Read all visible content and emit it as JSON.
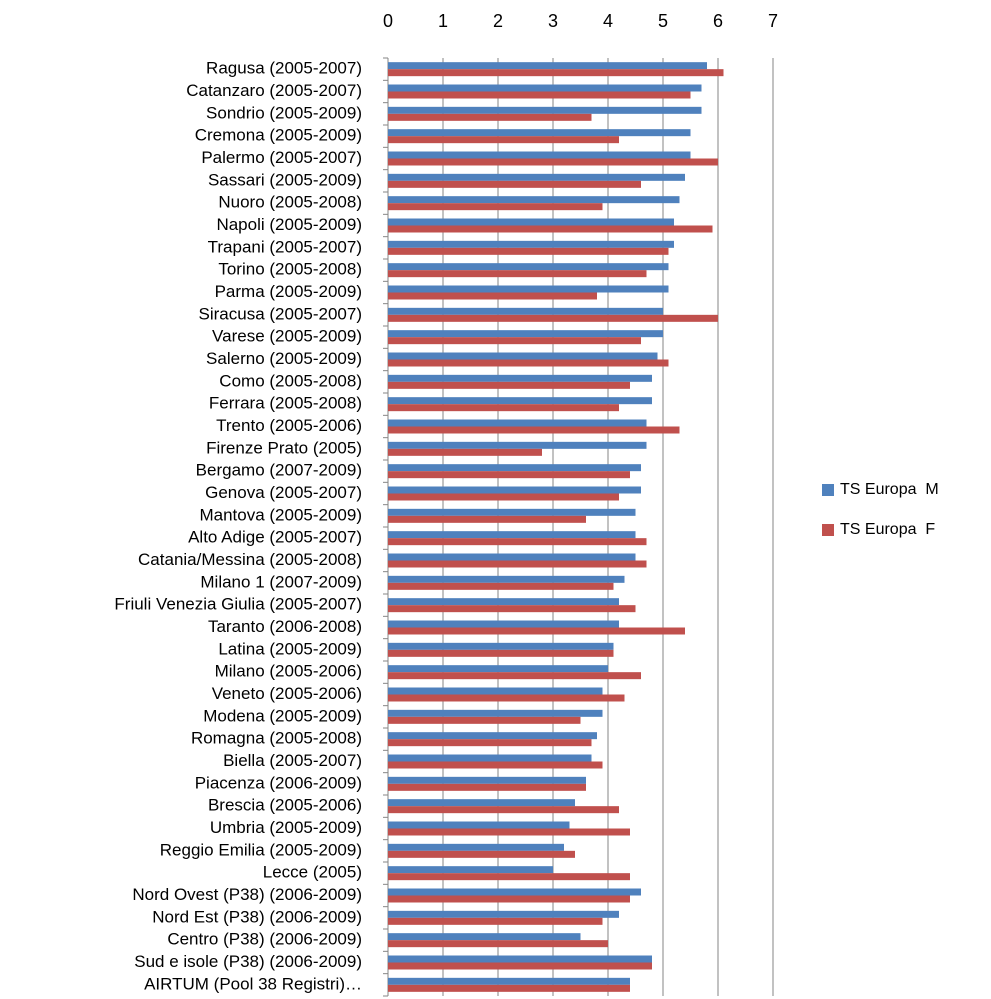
{
  "chart_data": {
    "type": "hbar",
    "categories": [
      "Ragusa (2005-2007)",
      "Catanzaro (2005-2007)",
      "Sondrio (2005-2009)",
      "Cremona (2005-2009)",
      "Palermo (2005-2007)",
      "Sassari (2005-2009)",
      "Nuoro (2005-2008)",
      "Napoli (2005-2009)",
      "Trapani (2005-2007)",
      "Torino (2005-2008)",
      "Parma (2005-2009)",
      "Siracusa (2005-2007)",
      "Varese (2005-2009)",
      "Salerno (2005-2009)",
      "Como (2005-2008)",
      "Ferrara (2005-2008)",
      "Trento (2005-2006)",
      "Firenze Prato (2005)",
      "Bergamo (2007-2009)",
      "Genova (2005-2007)",
      "Mantova (2005-2009)",
      "Alto Adige (2005-2007)",
      "Catania/Messina (2005-2008)",
      "Milano 1 (2007-2009)",
      "Friuli Venezia Giulia (2005-2007)",
      "Taranto (2006-2008)",
      "Latina (2005-2009)",
      "Milano (2005-2006)",
      "Veneto (2005-2006)",
      "Modena (2005-2009)",
      "Romagna (2005-2008)",
      "Biella (2005-2007)",
      "Piacenza (2006-2009)",
      "Brescia (2005-2006)",
      "Umbria (2005-2009)",
      "Reggio Emilia (2005-2009)",
      "Lecce (2005)",
      "Nord Ovest (P38) (2006-2009)",
      "Nord Est (P38) (2006-2009)",
      "Centro (P38) (2006-2009)",
      "Sud e isole (P38) (2006-2009)",
      "AIRTUM (Pool 38 Registri)…"
    ],
    "series": [
      {
        "name": "TS Europa  M",
        "color": "#4f81bd",
        "values": [
          5.8,
          5.7,
          5.7,
          5.5,
          5.5,
          5.4,
          5.3,
          5.2,
          5.2,
          5.1,
          5.1,
          5.0,
          5.0,
          4.9,
          4.8,
          4.8,
          4.7,
          4.7,
          4.6,
          4.6,
          4.5,
          4.5,
          4.5,
          4.3,
          4.2,
          4.2,
          4.1,
          4.0,
          3.9,
          3.9,
          3.8,
          3.7,
          3.6,
          3.4,
          3.3,
          3.2,
          3.0,
          4.6,
          4.2,
          3.5,
          4.8,
          4.4
        ]
      },
      {
        "name": "TS Europa  F",
        "color": "#c0504d",
        "values": [
          6.1,
          5.5,
          3.7,
          4.2,
          6.0,
          4.6,
          3.9,
          5.9,
          5.1,
          4.7,
          3.8,
          6.0,
          4.6,
          5.1,
          4.4,
          4.2,
          5.3,
          2.8,
          4.4,
          4.2,
          3.6,
          4.7,
          4.7,
          4.1,
          4.5,
          5.4,
          4.1,
          4.6,
          4.3,
          3.5,
          3.7,
          3.9,
          3.6,
          4.2,
          4.4,
          3.4,
          4.4,
          4.4,
          3.9,
          4.0,
          4.8,
          4.4
        ]
      }
    ],
    "xlim": [
      0,
      7
    ],
    "xticks": [
      0,
      1,
      2,
      3,
      4,
      5,
      6,
      7
    ],
    "grid": true,
    "legend": "right"
  }
}
